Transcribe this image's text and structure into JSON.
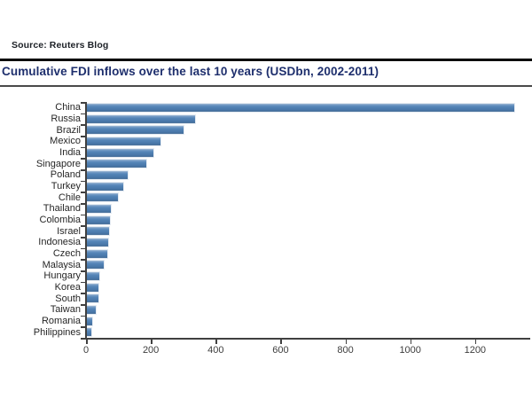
{
  "header": {
    "source_label": "Source: Reuters Blog",
    "title": "Cumulative FDI inflows over the last 10 years (USDbn, 2002-2011)"
  },
  "colors": {
    "bar_fill": "#4f81b5",
    "bar_highlight": "#aec3da",
    "bar_shadow": "#44709e",
    "title_text": "#1e2f6d",
    "source_text": "#1c2026",
    "axis": "#404040",
    "rule_top": "#0b0b0b",
    "rule_under_title": "#4a4a4a"
  },
  "chart_data": {
    "type": "bar",
    "orientation": "horizontal",
    "title": "Cumulative FDI inflows over the last 10 years (USDbn, 2002-2011)",
    "xlabel": "",
    "ylabel": "",
    "unit": "USDbn",
    "period": "2002-2011",
    "categories": [
      "China",
      "Russia",
      "Brazil",
      "Mexico",
      "India",
      "Singapore",
      "Poland",
      "Turkey",
      "Chile",
      "Thailand",
      "Colombia",
      "Israel",
      "Indonesia",
      "Czech",
      "Malaysia",
      "Hungary",
      "Korea",
      "South",
      "Taiwan",
      "Romania",
      "Philippines"
    ],
    "values": [
      1320,
      335,
      300,
      230,
      209,
      186,
      128,
      114,
      98,
      76,
      73,
      71,
      68,
      65,
      55,
      42,
      39,
      38,
      30,
      18,
      17
    ],
    "x_ticks": [
      0,
      200,
      400,
      600,
      800,
      1000,
      1200
    ],
    "xlim": [
      0,
      1370
    ],
    "grid": false,
    "legend": null
  }
}
